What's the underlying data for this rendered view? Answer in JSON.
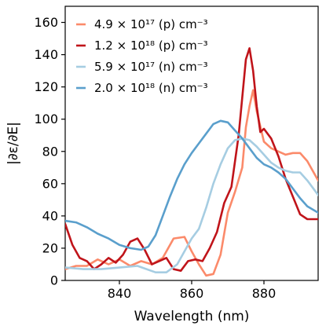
{
  "chart_data": {
    "type": "line",
    "xlabel": "Wavelength (nm)",
    "ylabel": "|∂ε/∂E|",
    "xlim": [
      825,
      895
    ],
    "ylim": [
      0,
      170
    ],
    "xticks": [
      840,
      860,
      880
    ],
    "yticks": [
      0,
      20,
      40,
      60,
      80,
      100,
      120,
      140,
      160
    ],
    "grid": false,
    "legend_position": "top-left",
    "series": [
      {
        "name": "4.9 × 10¹⁷ (p) cm⁻³",
        "color": "#fb8a6a",
        "x": [
          825,
          828,
          831,
          834,
          837,
          840,
          843,
          846,
          849,
          852,
          855,
          858,
          860,
          862,
          864,
          866,
          868,
          870,
          872,
          874,
          875,
          876,
          877,
          878,
          880,
          882,
          884,
          886,
          888,
          890,
          892,
          895
        ],
        "y": [
          7,
          9,
          9,
          13,
          10,
          13,
          9,
          12,
          10,
          14,
          26,
          27,
          18,
          10,
          3,
          4,
          16,
          42,
          55,
          70,
          95,
          108,
          118,
          105,
          86,
          82,
          80,
          78,
          79,
          79,
          74,
          62
        ]
      },
      {
        "name": "1.2 × 10¹⁸ (p) cm⁻³",
        "color": "#c0141a",
        "x": [
          825,
          827,
          829,
          831,
          833,
          835,
          837,
          839,
          841,
          843,
          845,
          847,
          849,
          851,
          853,
          855,
          857,
          859,
          861,
          863,
          865,
          867,
          869,
          871,
          873,
          875,
          876,
          877,
          878,
          879,
          880,
          882,
          884,
          886,
          888,
          890,
          892,
          895
        ],
        "y": [
          35,
          22,
          14,
          12,
          7,
          10,
          14,
          11,
          16,
          24,
          26,
          19,
          10,
          12,
          14,
          7,
          6,
          12,
          13,
          12,
          20,
          30,
          48,
          58,
          90,
          137,
          144,
          130,
          108,
          92,
          94,
          88,
          77,
          63,
          52,
          41,
          38,
          38
        ]
      },
      {
        "name": "5.9 × 10¹⁷ (n) cm⁻³",
        "color": "#a6cde2",
        "x": [
          825,
          830,
          835,
          840,
          845,
          850,
          853,
          856,
          858,
          860,
          862,
          864,
          866,
          868,
          870,
          872,
          874,
          876,
          878,
          880,
          882,
          884,
          886,
          888,
          890,
          892,
          895
        ],
        "y": [
          8,
          7,
          7,
          8,
          9,
          5,
          5,
          10,
          18,
          26,
          32,
          45,
          60,
          72,
          82,
          87,
          88,
          87,
          83,
          78,
          73,
          70,
          68,
          67,
          67,
          62,
          53
        ]
      },
      {
        "name": "2.0 × 10¹⁸ (n) cm⁻³",
        "color": "#5a9fcc",
        "x": [
          825,
          828,
          831,
          834,
          837,
          840,
          843,
          846,
          848,
          850,
          852,
          854,
          856,
          858,
          860,
          862,
          864,
          866,
          868,
          870,
          872,
          874,
          876,
          878,
          880,
          882,
          884,
          886,
          888,
          890,
          892,
          895
        ],
        "y": [
          37,
          36,
          33,
          29,
          26,
          22,
          20,
          19,
          21,
          28,
          40,
          52,
          63,
          72,
          79,
          85,
          91,
          97,
          99,
          98,
          93,
          88,
          82,
          76,
          72,
          70,
          67,
          63,
          57,
          51,
          46,
          42
        ]
      }
    ]
  }
}
